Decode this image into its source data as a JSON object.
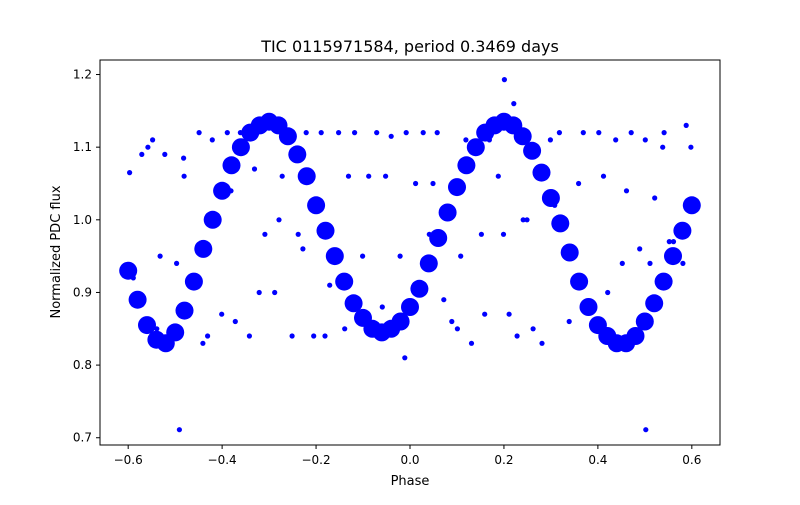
{
  "chart_data": {
    "type": "scatter",
    "title": "TIC 0115971584, period 0.3469 days",
    "xlabel": "Phase",
    "ylabel": "Normalized PDC flux",
    "xlim": [
      -0.66,
      0.66
    ],
    "ylim": [
      0.69,
      1.22
    ],
    "xticks": [
      -0.6,
      -0.4,
      -0.2,
      0.0,
      0.2,
      0.4,
      0.6
    ],
    "xtick_labels": [
      "−0.6",
      "−0.4",
      "−0.2",
      "0.0",
      "0.2",
      "0.4",
      "0.6"
    ],
    "yticks": [
      0.7,
      0.8,
      0.9,
      1.0,
      1.1,
      1.2
    ],
    "ytick_labels": [
      "0.7",
      "0.8",
      "0.9",
      "1.0",
      "1.1",
      "1.2"
    ],
    "grid": false,
    "marker_color": "#0000ff",
    "series": [
      {
        "x": [
          -0.6,
          -0.58,
          -0.56,
          -0.54,
          -0.52,
          -0.5,
          -0.48,
          -0.46,
          -0.44,
          -0.42,
          -0.4,
          -0.38,
          -0.36,
          -0.34,
          -0.32,
          -0.3,
          -0.28,
          -0.26,
          -0.24,
          -0.22,
          -0.2,
          -0.18,
          -0.16,
          -0.14,
          -0.12,
          -0.1,
          -0.08,
          -0.06,
          -0.04,
          -0.02,
          0.0,
          0.02,
          0.04,
          0.06,
          0.08,
          0.1,
          0.12,
          0.14,
          0.16,
          0.18,
          0.2,
          0.22,
          0.24,
          0.26,
          0.28,
          0.3,
          0.32,
          0.34,
          0.36,
          0.38,
          0.4,
          0.42,
          0.44,
          0.46,
          0.48,
          0.5,
          0.52,
          0.54,
          0.56,
          0.58,
          0.6
        ],
        "y": [
          0.93,
          0.89,
          0.855,
          0.835,
          0.83,
          0.845,
          0.875,
          0.915,
          0.96,
          1.0,
          1.04,
          1.075,
          1.1,
          1.12,
          1.13,
          1.135,
          1.13,
          1.115,
          1.09,
          1.06,
          1.02,
          0.985,
          0.95,
          0.915,
          0.885,
          0.865,
          0.85,
          0.845,
          0.85,
          0.86,
          0.88,
          0.905,
          0.94,
          0.975,
          1.01,
          1.045,
          1.075,
          1.1,
          1.12,
          1.13,
          1.135,
          1.13,
          1.115,
          1.095,
          1.065,
          1.03,
          0.995,
          0.955,
          0.915,
          0.88,
          0.855,
          0.84,
          0.83,
          0.83,
          0.84,
          0.86,
          0.885,
          0.915,
          0.95,
          0.985,
          1.02
        ]
      },
      {
        "x": [
          -0.597,
          -0.571,
          -0.558,
          -0.548,
          -0.532,
          -0.522,
          -0.497,
          -0.482,
          -0.471,
          -0.449,
          -0.431,
          -0.421,
          -0.401,
          -0.389,
          -0.372,
          -0.361,
          -0.342,
          -0.331,
          -0.309,
          -0.288,
          -0.272,
          -0.251,
          -0.238,
          -0.221,
          -0.205,
          -0.189,
          -0.171,
          -0.152,
          -0.139,
          -0.118,
          -0.101,
          -0.088,
          -0.071,
          -0.052,
          -0.04,
          -0.021,
          -0.008,
          0.012,
          0.028,
          0.041,
          0.058,
          0.072,
          0.089,
          0.108,
          0.119,
          0.131,
          0.152,
          0.169,
          0.188,
          0.199,
          0.211,
          0.228,
          0.249,
          0.262,
          0.281,
          0.299,
          0.318,
          0.339,
          0.351,
          0.369,
          0.389,
          0.402,
          0.421,
          0.438,
          0.452,
          0.471,
          0.489,
          0.501,
          0.521,
          0.538,
          0.552,
          0.571,
          0.588,
          0.598,
          0.581,
          0.561,
          0.541,
          0.511,
          0.461,
          0.412,
          0.359,
          0.308,
          0.241,
          0.159,
          0.101,
          0.049,
          -0.011,
          -0.059,
          -0.131,
          -0.181,
          -0.228,
          -0.279,
          -0.321,
          -0.381,
          -0.441,
          -0.481,
          -0.539,
          -0.589,
          -0.491,
          0.502,
          0.201,
          0.221
        ],
        "y": [
          1.065,
          1.09,
          1.1,
          1.11,
          0.95,
          1.09,
          0.94,
          1.085,
          0.91,
          1.12,
          0.84,
          1.11,
          0.87,
          1.12,
          0.86,
          1.12,
          0.84,
          1.07,
          0.98,
          0.9,
          1.06,
          0.84,
          0.98,
          1.12,
          0.84,
          1.12,
          0.91,
          1.12,
          0.85,
          1.12,
          0.95,
          1.06,
          1.12,
          1.06,
          1.115,
          0.95,
          1.12,
          1.05,
          1.12,
          0.98,
          1.12,
          0.89,
          0.86,
          0.95,
          1.11,
          0.83,
          0.98,
          1.11,
          1.06,
          0.98,
          0.87,
          0.84,
          1.0,
          0.85,
          0.83,
          1.11,
          1.12,
          0.86,
          0.95,
          1.12,
          0.85,
          1.12,
          0.9,
          1.11,
          0.94,
          1.12,
          0.96,
          1.11,
          1.03,
          1.1,
          0.97,
          0.95,
          1.13,
          1.1,
          0.94,
          0.97,
          1.12,
          0.94,
          1.04,
          1.06,
          1.05,
          1.02,
          1.0,
          0.87,
          0.85,
          1.05,
          0.81,
          0.88,
          1.06,
          0.84,
          0.96,
          1.0,
          0.9,
          1.04,
          0.83,
          1.06,
          0.85,
          0.92,
          0.711,
          0.711,
          1.193,
          1.16
        ]
      }
    ]
  }
}
